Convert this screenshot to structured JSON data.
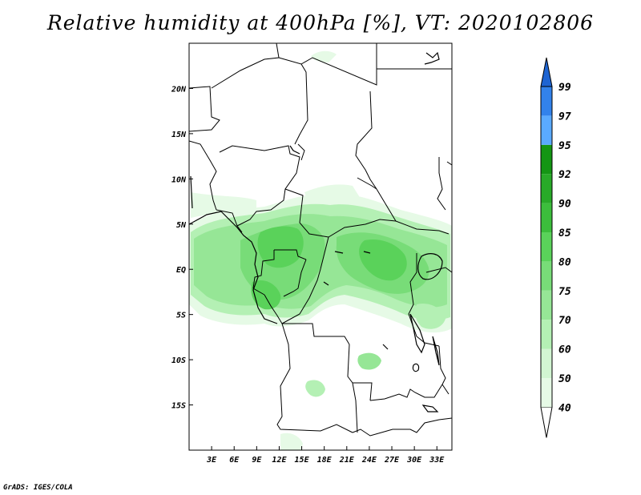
{
  "title": "Relative humidity at 400hPa [%], VT: 2020102806",
  "credit": "GrADS: IGES/COLA",
  "map": {
    "lon_labels": [
      "3E",
      "6E",
      "9E",
      "12E",
      "15E",
      "18E",
      "21E",
      "24E",
      "27E",
      "30E",
      "33E"
    ],
    "lat_labels": [
      "20N",
      "15N",
      "10N",
      "5N",
      "EQ",
      "5S",
      "10S",
      "15S"
    ],
    "lon_range": [
      0,
      35
    ],
    "lat_range": [
      -20,
      25
    ]
  },
  "colorbar": {
    "levels": [
      "40",
      "50",
      "60",
      "70",
      "75",
      "80",
      "85",
      "90",
      "92",
      "95",
      "97",
      "99"
    ],
    "colors": [
      "#ffffff",
      "#e6fae6",
      "#d2f5d2",
      "#b4f0b4",
      "#96e696",
      "#78dc78",
      "#5ad25a",
      "#3cbe3c",
      "#28aa28",
      "#149614",
      "#5aaaff",
      "#3282eb",
      "#1e64d2"
    ]
  }
}
